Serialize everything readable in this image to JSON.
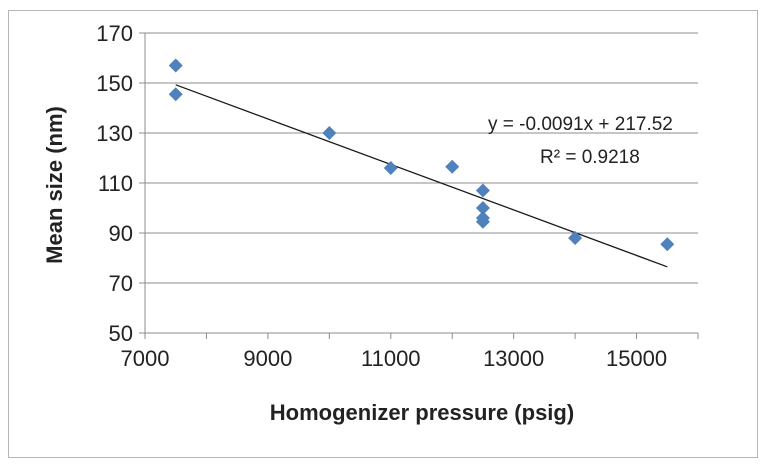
{
  "chart_data": {
    "type": "scatter",
    "xlabel": "Homogenizer pressure (psig)",
    "ylabel": "Mean size (nm)",
    "xlim": [
      7000,
      16000
    ],
    "ylim": [
      50,
      170
    ],
    "xticks": [
      7000,
      9000,
      11000,
      13000,
      15000
    ],
    "yticks": [
      50,
      70,
      90,
      110,
      130,
      150,
      170
    ],
    "xtick_labels": [
      "7000",
      "9000",
      "11000",
      "13000",
      "15000"
    ],
    "ytick_labels": [
      "50",
      "70",
      "90",
      "110",
      "130",
      "150",
      "170"
    ],
    "grid": "horizontal",
    "marker_color": "#4f81bd",
    "points": [
      {
        "x": 7500,
        "y": 157
      },
      {
        "x": 7500,
        "y": 145.5
      },
      {
        "x": 10000,
        "y": 130
      },
      {
        "x": 11000,
        "y": 116
      },
      {
        "x": 12000,
        "y": 116.5
      },
      {
        "x": 12500,
        "y": 107
      },
      {
        "x": 12500,
        "y": 100
      },
      {
        "x": 12500,
        "y": 96
      },
      {
        "x": 12500,
        "y": 94.5
      },
      {
        "x": 14000,
        "y": 88
      },
      {
        "x": 15500,
        "y": 85.5
      }
    ],
    "trendline": {
      "slope": -0.0091,
      "intercept": 217.52,
      "x_range": [
        7500,
        15500
      ],
      "equation_label": "y = -0.0091x + 217.52",
      "r2_label": "R² = 0.9218"
    }
  }
}
